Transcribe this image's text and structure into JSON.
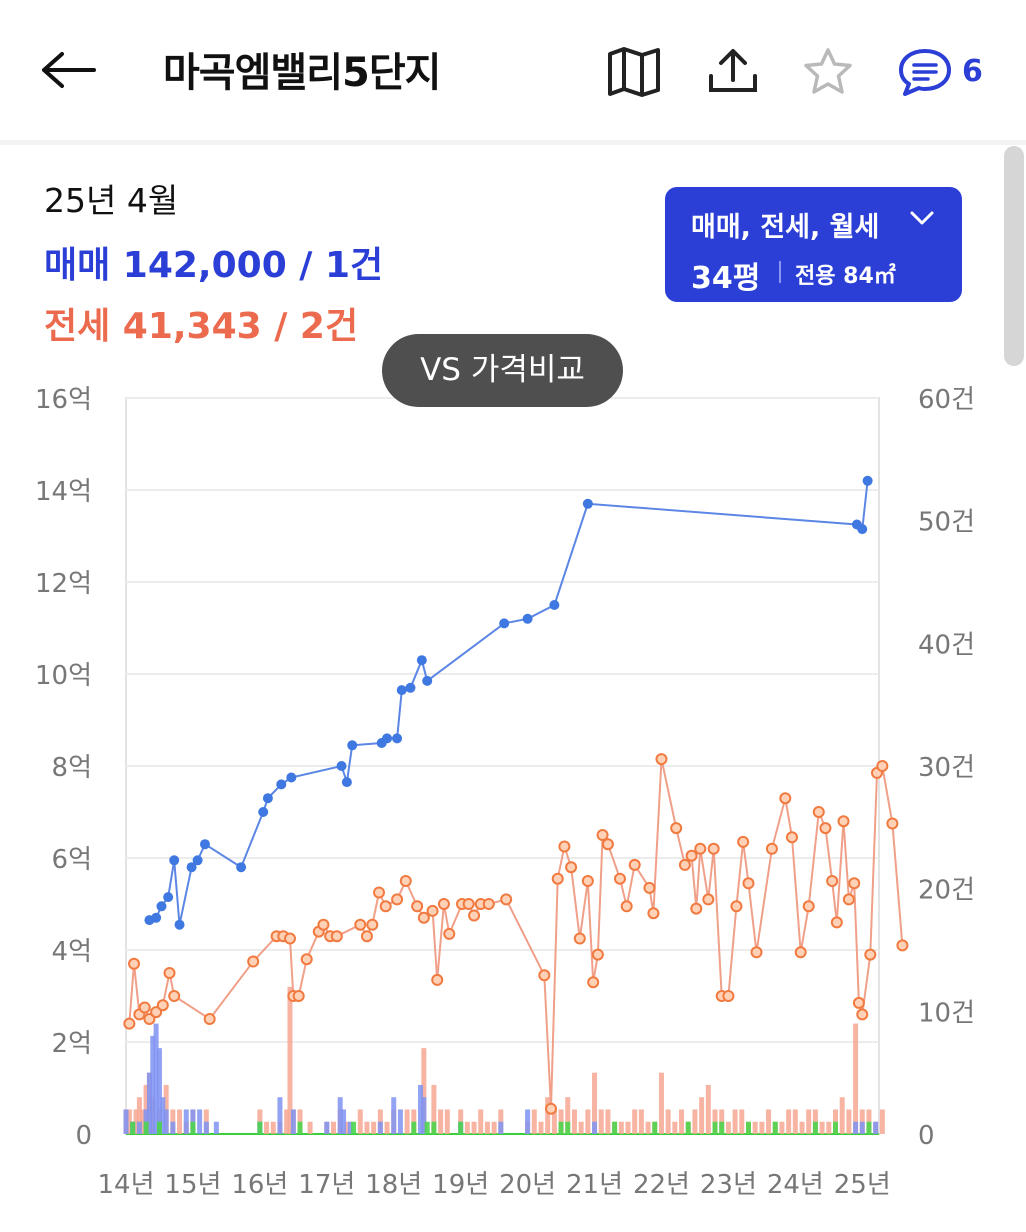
{
  "header": {
    "title": "마곡엠밸리5단지",
    "comment_count": "6"
  },
  "summary": {
    "period": "25년 4월",
    "sale": "매매 142,000 / 1건",
    "jeonse": "전세 41,343 / 2건"
  },
  "filter": {
    "types": "매매, 전세, 월세",
    "size": "34평",
    "area": "전용 84㎡"
  },
  "compare_button": "VS 가격비교",
  "colors": {
    "accent": "#2b3fd6",
    "sale_line": "#5b86e5",
    "sale_point": "#3f78e0",
    "jeonse_line": "#f0a089",
    "jeonse_point": "#f07a3f",
    "volume_sale": "#7f93f2",
    "volume_jeonse": "#f7a792",
    "volume_rent": "#4cd44c"
  },
  "icons": [
    "back-arrow-icon",
    "map-icon",
    "share-icon",
    "star-icon",
    "comment-icon",
    "chevron-down-icon"
  ],
  "chart_data": {
    "type": "line",
    "x_unit": "year",
    "x_range": [
      2014.0,
      2025.25
    ],
    "xticks": [
      {
        "x": 2014,
        "label": "14년"
      },
      {
        "x": 2015,
        "label": "15년"
      },
      {
        "x": 2016,
        "label": "16년"
      },
      {
        "x": 2017,
        "label": "17년"
      },
      {
        "x": 2018,
        "label": "18년"
      },
      {
        "x": 2019,
        "label": "19년"
      },
      {
        "x": 2020,
        "label": "20년"
      },
      {
        "x": 2021,
        "label": "21년"
      },
      {
        "x": 2022,
        "label": "22년"
      },
      {
        "x": 2023,
        "label": "23년"
      },
      {
        "x": 2024,
        "label": "24년"
      },
      {
        "x": 2025,
        "label": "25년"
      }
    ],
    "y_left": {
      "range": [
        0,
        16
      ],
      "ticks": [
        {
          "v": 0,
          "label": "0"
        },
        {
          "v": 2,
          "label": "2억"
        },
        {
          "v": 4,
          "label": "4억"
        },
        {
          "v": 6,
          "label": "6억"
        },
        {
          "v": 8,
          "label": "8억"
        },
        {
          "v": 10,
          "label": "10억"
        },
        {
          "v": 12,
          "label": "12억"
        },
        {
          "v": 14,
          "label": "14억"
        },
        {
          "v": 16,
          "label": "16억"
        }
      ]
    },
    "y_right": {
      "range": [
        0,
        60
      ],
      "ticks": [
        {
          "v": 0,
          "label": "0"
        },
        {
          "v": 10,
          "label": "10건"
        },
        {
          "v": 20,
          "label": "20건"
        },
        {
          "v": 30,
          "label": "30건"
        },
        {
          "v": 40,
          "label": "40건"
        },
        {
          "v": 50,
          "label": "50건"
        },
        {
          "v": 60,
          "label": "60건"
        }
      ]
    },
    "grid": true,
    "series": [
      {
        "kind": "price-sale",
        "axis": "left",
        "points": [
          [
            2014.35,
            4.65
          ],
          [
            2014.45,
            4.7
          ],
          [
            2014.53,
            4.95
          ],
          [
            2014.63,
            5.15
          ],
          [
            2014.72,
            5.95
          ],
          [
            2014.8,
            4.55
          ],
          [
            2014.98,
            5.8
          ],
          [
            2015.07,
            5.95
          ],
          [
            2015.18,
            6.3
          ],
          [
            2015.72,
            5.8
          ],
          [
            2016.05,
            7.0
          ],
          [
            2016.12,
            7.3
          ],
          [
            2016.32,
            7.6
          ],
          [
            2016.47,
            7.75
          ],
          [
            2017.22,
            8.0
          ],
          [
            2017.3,
            7.65
          ],
          [
            2017.38,
            8.45
          ],
          [
            2017.82,
            8.5
          ],
          [
            2017.9,
            8.6
          ],
          [
            2018.05,
            8.6
          ],
          [
            2018.12,
            9.65
          ],
          [
            2018.25,
            9.7
          ],
          [
            2018.42,
            10.3
          ],
          [
            2018.5,
            9.85
          ],
          [
            2019.65,
            11.1
          ],
          [
            2020.0,
            11.2
          ],
          [
            2020.4,
            11.5
          ],
          [
            2020.9,
            13.7
          ],
          [
            2024.92,
            13.25
          ],
          [
            2025.0,
            13.15
          ],
          [
            2025.08,
            14.2
          ]
        ]
      },
      {
        "kind": "price-jeonse",
        "axis": "left",
        "points": [
          [
            2014.05,
            2.4
          ],
          [
            2014.12,
            3.7
          ],
          [
            2014.2,
            2.6
          ],
          [
            2014.28,
            2.75
          ],
          [
            2014.35,
            2.5
          ],
          [
            2014.45,
            2.65
          ],
          [
            2014.55,
            2.8
          ],
          [
            2014.65,
            3.5
          ],
          [
            2014.72,
            3.0
          ],
          [
            2015.25,
            2.5
          ],
          [
            2015.9,
            3.75
          ],
          [
            2016.25,
            4.3
          ],
          [
            2016.35,
            4.3
          ],
          [
            2016.45,
            4.25
          ],
          [
            2016.5,
            3.0
          ],
          [
            2016.58,
            3.0
          ],
          [
            2016.7,
            3.8
          ],
          [
            2016.88,
            4.4
          ],
          [
            2016.95,
            4.55
          ],
          [
            2017.05,
            4.3
          ],
          [
            2017.15,
            4.3
          ],
          [
            2017.5,
            4.55
          ],
          [
            2017.6,
            4.3
          ],
          [
            2017.68,
            4.55
          ],
          [
            2017.78,
            5.25
          ],
          [
            2017.88,
            4.95
          ],
          [
            2018.05,
            5.1
          ],
          [
            2018.18,
            5.5
          ],
          [
            2018.35,
            4.95
          ],
          [
            2018.45,
            4.7
          ],
          [
            2018.58,
            4.85
          ],
          [
            2018.65,
            3.35
          ],
          [
            2018.75,
            5.0
          ],
          [
            2018.83,
            4.35
          ],
          [
            2019.02,
            5.0
          ],
          [
            2019.12,
            5.0
          ],
          [
            2019.2,
            4.75
          ],
          [
            2019.3,
            5.0
          ],
          [
            2019.42,
            5.0
          ],
          [
            2019.68,
            5.1
          ],
          [
            2020.25,
            3.45
          ],
          [
            2020.35,
            0.55
          ],
          [
            2020.45,
            5.55
          ],
          [
            2020.55,
            6.25
          ],
          [
            2020.65,
            5.8
          ],
          [
            2020.78,
            4.25
          ],
          [
            2020.9,
            5.5
          ],
          [
            2020.98,
            3.3
          ],
          [
            2021.05,
            3.9
          ],
          [
            2021.12,
            6.5
          ],
          [
            2021.2,
            6.3
          ],
          [
            2021.38,
            5.55
          ],
          [
            2021.48,
            4.95
          ],
          [
            2021.6,
            5.85
          ],
          [
            2021.82,
            5.35
          ],
          [
            2021.88,
            4.8
          ],
          [
            2022.0,
            8.15
          ],
          [
            2022.22,
            6.65
          ],
          [
            2022.35,
            5.85
          ],
          [
            2022.45,
            6.05
          ],
          [
            2022.52,
            4.9
          ],
          [
            2022.58,
            6.2
          ],
          [
            2022.7,
            5.1
          ],
          [
            2022.78,
            6.2
          ],
          [
            2022.9,
            3.0
          ],
          [
            2023.0,
            3.0
          ],
          [
            2023.12,
            4.95
          ],
          [
            2023.22,
            6.35
          ],
          [
            2023.3,
            5.45
          ],
          [
            2023.42,
            3.95
          ],
          [
            2023.65,
            6.2
          ],
          [
            2023.85,
            7.3
          ],
          [
            2023.95,
            6.45
          ],
          [
            2024.08,
            3.95
          ],
          [
            2024.2,
            4.95
          ],
          [
            2024.35,
            7.0
          ],
          [
            2024.45,
            6.65
          ],
          [
            2024.55,
            5.5
          ],
          [
            2024.62,
            4.6
          ],
          [
            2024.72,
            6.8
          ],
          [
            2024.8,
            5.1
          ],
          [
            2024.88,
            5.45
          ],
          [
            2024.95,
            2.85
          ],
          [
            2025.0,
            2.6
          ],
          [
            2025.12,
            3.9
          ],
          [
            2025.22,
            7.85
          ],
          [
            2025.3,
            8.0
          ],
          [
            2025.45,
            6.75
          ],
          [
            2025.6,
            4.1
          ]
        ]
      }
    ],
    "volume": {
      "axis": "right",
      "sale": [
        [
          2014.0,
          2
        ],
        [
          2014.1,
          1
        ],
        [
          2014.2,
          1
        ],
        [
          2014.3,
          2
        ],
        [
          2014.35,
          5
        ],
        [
          2014.4,
          8
        ],
        [
          2014.45,
          9
        ],
        [
          2014.5,
          7
        ],
        [
          2014.55,
          3
        ],
        [
          2014.6,
          2
        ],
        [
          2014.7,
          1
        ],
        [
          2014.9,
          2
        ],
        [
          2015.0,
          2
        ],
        [
          2015.1,
          2
        ],
        [
          2015.2,
          1
        ],
        [
          2015.35,
          1
        ],
        [
          2016.0,
          1
        ],
        [
          2016.3,
          3
        ],
        [
          2016.5,
          2
        ],
        [
          2017.0,
          1
        ],
        [
          2017.2,
          3
        ],
        [
          2017.25,
          2
        ],
        [
          2017.35,
          1
        ],
        [
          2017.8,
          1
        ],
        [
          2018.0,
          3
        ],
        [
          2018.1,
          2
        ],
        [
          2018.4,
          4
        ],
        [
          2018.45,
          3
        ],
        [
          2019.0,
          1
        ],
        [
          2019.6,
          1
        ],
        [
          2020.0,
          2
        ],
        [
          2021.0,
          1
        ],
        [
          2024.9,
          1
        ],
        [
          2025.0,
          1
        ],
        [
          2025.2,
          1
        ]
      ],
      "jeonse": [
        [
          2014.0,
          2
        ],
        [
          2014.05,
          2
        ],
        [
          2014.1,
          1
        ],
        [
          2014.15,
          2
        ],
        [
          2014.2,
          3
        ],
        [
          2014.25,
          2
        ],
        [
          2014.3,
          4
        ],
        [
          2014.35,
          5
        ],
        [
          2014.4,
          3
        ],
        [
          2014.5,
          2
        ],
        [
          2014.6,
          4
        ],
        [
          2014.7,
          2
        ],
        [
          2014.8,
          2
        ],
        [
          2014.9,
          1
        ],
        [
          2015.0,
          2
        ],
        [
          2015.2,
          2
        ],
        [
          2016.0,
          2
        ],
        [
          2016.1,
          1
        ],
        [
          2016.2,
          1
        ],
        [
          2016.3,
          1
        ],
        [
          2016.4,
          2
        ],
        [
          2016.45,
          12
        ],
        [
          2016.5,
          2
        ],
        [
          2016.6,
          2
        ],
        [
          2016.75,
          1
        ],
        [
          2017.0,
          1
        ],
        [
          2017.1,
          1
        ],
        [
          2017.2,
          2
        ],
        [
          2017.3,
          1
        ],
        [
          2017.5,
          2
        ],
        [
          2017.6,
          1
        ],
        [
          2017.7,
          1
        ],
        [
          2017.8,
          2
        ],
        [
          2017.9,
          1
        ],
        [
          2018.0,
          2
        ],
        [
          2018.2,
          2
        ],
        [
          2018.3,
          2
        ],
        [
          2018.45,
          7
        ],
        [
          2018.6,
          4
        ],
        [
          2018.7,
          2
        ],
        [
          2018.8,
          2
        ],
        [
          2019.0,
          2
        ],
        [
          2019.1,
          1
        ],
        [
          2019.2,
          1
        ],
        [
          2019.3,
          2
        ],
        [
          2019.4,
          1
        ],
        [
          2019.5,
          1
        ],
        [
          2019.6,
          2
        ],
        [
          2020.0,
          1
        ],
        [
          2020.1,
          2
        ],
        [
          2020.2,
          1
        ],
        [
          2020.3,
          3
        ],
        [
          2020.4,
          2
        ],
        [
          2020.5,
          2
        ],
        [
          2020.6,
          3
        ],
        [
          2020.7,
          2
        ],
        [
          2020.8,
          1
        ],
        [
          2020.9,
          2
        ],
        [
          2021.0,
          5
        ],
        [
          2021.1,
          2
        ],
        [
          2021.2,
          2
        ],
        [
          2021.3,
          1
        ],
        [
          2021.4,
          1
        ],
        [
          2021.5,
          1
        ],
        [
          2021.6,
          2
        ],
        [
          2021.7,
          2
        ],
        [
          2021.8,
          1
        ],
        [
          2021.9,
          1
        ],
        [
          2022.0,
          5
        ],
        [
          2022.1,
          2
        ],
        [
          2022.2,
          1
        ],
        [
          2022.3,
          2
        ],
        [
          2022.4,
          1
        ],
        [
          2022.5,
          2
        ],
        [
          2022.6,
          3
        ],
        [
          2022.7,
          4
        ],
        [
          2022.8,
          2
        ],
        [
          2022.9,
          2
        ],
        [
          2023.0,
          1
        ],
        [
          2023.1,
          2
        ],
        [
          2023.2,
          2
        ],
        [
          2023.3,
          1
        ],
        [
          2023.4,
          1
        ],
        [
          2023.5,
          1
        ],
        [
          2023.6,
          2
        ],
        [
          2023.7,
          1
        ],
        [
          2023.8,
          1
        ],
        [
          2023.9,
          2
        ],
        [
          2024.0,
          2
        ],
        [
          2024.1,
          1
        ],
        [
          2024.2,
          2
        ],
        [
          2024.3,
          2
        ],
        [
          2024.4,
          1
        ],
        [
          2024.5,
          1
        ],
        [
          2024.6,
          2
        ],
        [
          2024.7,
          3
        ],
        [
          2024.8,
          2
        ],
        [
          2024.9,
          9
        ],
        [
          2025.0,
          2
        ],
        [
          2025.1,
          2
        ],
        [
          2025.2,
          1
        ],
        [
          2025.3,
          2
        ]
      ],
      "rent": [
        [
          2014.1,
          1
        ],
        [
          2014.3,
          1
        ],
        [
          2014.5,
          1
        ],
        [
          2015.0,
          1
        ],
        [
          2016.0,
          1
        ],
        [
          2016.6,
          1
        ],
        [
          2017.4,
          1
        ],
        [
          2018.3,
          1
        ],
        [
          2018.5,
          1
        ],
        [
          2018.6,
          1
        ],
        [
          2019.0,
          1
        ],
        [
          2020.5,
          1
        ],
        [
          2020.6,
          1
        ],
        [
          2021.3,
          1
        ],
        [
          2021.9,
          1
        ],
        [
          2022.4,
          1
        ],
        [
          2022.8,
          1
        ],
        [
          2022.9,
          1
        ],
        [
          2023.3,
          1
        ],
        [
          2023.7,
          1
        ],
        [
          2024.3,
          1
        ],
        [
          2024.6,
          1
        ],
        [
          2025.1,
          1
        ]
      ]
    }
  }
}
